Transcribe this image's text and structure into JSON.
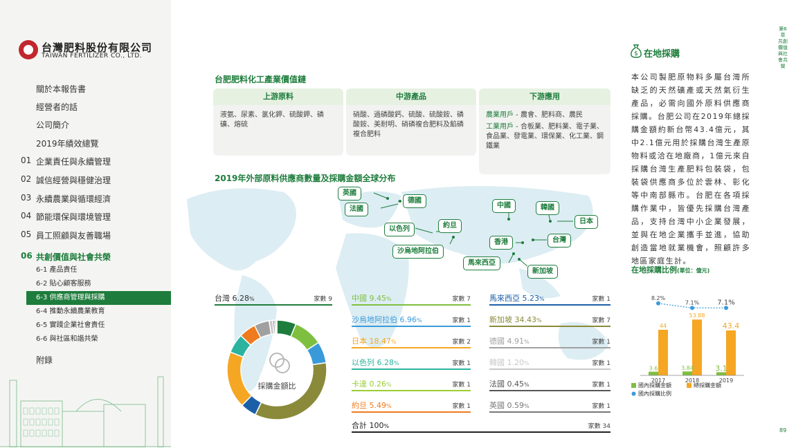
{
  "logo": {
    "cn": "台灣肥料股份有限公司",
    "en": "TAIWAN FERTILIZER CO., LTD."
  },
  "sidebar": {
    "items": [
      {
        "num": "",
        "label": "關於本報告書"
      },
      {
        "num": "",
        "label": "經營者的話"
      },
      {
        "num": "",
        "label": "公司簡介"
      },
      {
        "num": "",
        "label": "2019年績效總覽"
      },
      {
        "num": "01",
        "label": "企業責任與永續管理"
      },
      {
        "num": "02",
        "label": "誠信經營與穩健治理"
      },
      {
        "num": "03",
        "label": "永續農業與循環經濟"
      },
      {
        "num": "04",
        "label": "節能環保與環境管理"
      },
      {
        "num": "05",
        "label": "員工照顧與友善職場"
      },
      {
        "num": "06",
        "label": "共創價值與社會共榮"
      }
    ],
    "sub_items": [
      "6-1 產品責任",
      "6-2 貼心顧客服務",
      "6-3 供應商管理與採購",
      "6-4 推動永續農業教育",
      "6-5 實踐企業社會責任",
      "6-6 與社區和諧共榮"
    ],
    "appendix": "附錄"
  },
  "chain": {
    "title": "台肥肥料化工產業價值鏈",
    "upstream": {
      "head": "上游原料",
      "body": "液氨、尿素、氯化鉀、硫酸鉀、磷礦、熔硫"
    },
    "midstream": {
      "head": "中游產品",
      "body": "硝酸、過磷酸鈣、硫酸、硫酸銨、磷酸銨、美耐明、硝磷複合肥料及餡磷複合肥料"
    },
    "downstream": {
      "head": "下游應用",
      "line1_label": "農業用戶",
      "line1_body": " - 農會、肥料商、農民",
      "line2_label": "工業用戶",
      "line2_body": " - 合板業、肥料業、電子業、食品業、發電業、環保業、化工業、鋼鐵業"
    }
  },
  "map": {
    "title": "2019年外部原料供應商數量及採購金額全球分布",
    "labels": [
      "英國",
      "法國",
      "德國",
      "以色列",
      "約旦",
      "沙烏地阿拉伯",
      "中國",
      "韓國",
      "日本",
      "香港",
      "台灣",
      "馬來西亞",
      "新加坡"
    ]
  },
  "donut": {
    "label": "採購金額比",
    "slices": [
      {
        "name": "台灣",
        "pct": 6.28,
        "color": "#1e7d3c"
      },
      {
        "name": "中國",
        "pct": 9.45,
        "color": "#7fbf3f"
      },
      {
        "name": "沙烏地阿拉伯",
        "pct": 6.96,
        "color": "#3a9ad9"
      },
      {
        "name": "新加坡",
        "pct": 34.43,
        "color": "#8a8a3a"
      },
      {
        "name": "馬來西亞",
        "pct": 5.23,
        "color": "#1b5fa8"
      },
      {
        "name": "日本",
        "pct": 18.47,
        "color": "#f5a623"
      },
      {
        "name": "以色列",
        "pct": 6.28,
        "color": "#2bb3a0"
      },
      {
        "name": "約旦",
        "pct": 5.49,
        "color": "#f07a1e"
      },
      {
        "name": "德國",
        "pct": 4.91,
        "color": "#a0a0a0"
      },
      {
        "name": "韓國",
        "pct": 1.2,
        "color": "#c8c8c8"
      },
      {
        "name": "英國",
        "pct": 0.59,
        "color": "#777777"
      },
      {
        "name": "法國",
        "pct": 0.45,
        "color": "#555555"
      },
      {
        "name": "卡達",
        "pct": 0.26,
        "color": "#9acd32"
      }
    ]
  },
  "stats_left": {
    "name": "台灣",
    "pct": "6.28",
    "count": "家數 9",
    "color": "#1e7d3c"
  },
  "stats": [
    {
      "name": "中國",
      "pct": "9.45",
      "count": "家數 7",
      "color": "#7fbf3f"
    },
    {
      "name": "馬來西亞",
      "pct": "5.23",
      "count": "家數 1",
      "color": "#1b5fa8"
    },
    {
      "name": "沙烏地阿拉伯",
      "pct": "6.96",
      "count": "家數 1",
      "color": "#3a9ad9"
    },
    {
      "name": "新加坡",
      "pct": "34.43",
      "count": "家數 7",
      "color": "#8a8a3a"
    },
    {
      "name": "日本",
      "pct": "18.47",
      "count": "家數 2",
      "color": "#f5a623"
    },
    {
      "name": "德國",
      "pct": "4.91",
      "count": "家數 1",
      "color": "#a0a0a0"
    },
    {
      "name": "以色列",
      "pct": "6.28",
      "count": "家數 1",
      "color": "#2bb3a0"
    },
    {
      "name": "韓國",
      "pct": "1.20",
      "count": "家數 1",
      "color": "#c8c8c8"
    },
    {
      "name": "卡達",
      "pct": "0.26",
      "count": "家數 1",
      "color": "#9acd32"
    },
    {
      "name": "法國",
      "pct": "0.45",
      "count": "家數 1",
      "color": "#555555"
    },
    {
      "name": "約旦",
      "pct": "5.49",
      "count": "家數 1",
      "color": "#f07a1e"
    },
    {
      "name": "英國",
      "pct": "0.59",
      "count": "家數 1",
      "color": "#777777"
    }
  ],
  "total": {
    "label": "合計 100",
    "pct_suffix": "%",
    "count": "家數 34"
  },
  "pct_suffix": "%",
  "right": {
    "title": "在地採購",
    "body": "本公司製肥原物料多屬台灣所缺乏的天然礦產或天然氣衍生產品，必需向國外原料供應商採購。台肥公司在2019年總採購金額約新台幣43.4億元，其中2.1億元用於採購台灣生產原物料或洽在地廠商，1億元來自採購台灣生產肥料包裝袋，包裝袋供應商多位於雲林、彰化等中南部縣市。台肥在各項採購作業中，皆優先採購台灣產品，支持台灣中小企業發展，並與在地企業攜手並進，協助創造當地就業機會，照顧許多地區家庭生計。",
    "ratio_title": "在地採購比例",
    "ratio_unit": "(單位：億元)"
  },
  "chart_data": {
    "type": "bar",
    "categories": [
      "2017",
      "2018",
      "2019"
    ],
    "series": [
      {
        "name": "國內採購金額",
        "values": [
          3.6,
          3.84,
          3.1
        ],
        "color": "#7fbf3f"
      },
      {
        "name": "總採購金額",
        "values": [
          44,
          53.88,
          43.4
        ],
        "color": "#f5a623"
      }
    ],
    "line": {
      "name": "國內採購比例",
      "values": [
        8.2,
        7.1,
        7.1
      ],
      "labels": [
        "8.2%",
        "7.1%",
        "7.1%"
      ],
      "color": "#3a9ad9"
    },
    "value_labels": {
      "domestic": [
        "3.6",
        "3.84",
        "3.1"
      ],
      "total": [
        "44",
        "53.88",
        "43.4"
      ]
    },
    "ylim": [
      0,
      60
    ],
    "legend": "bottom"
  },
  "chapter_tag": "第6章 共創價值與社會共榮",
  "page_no": "89"
}
